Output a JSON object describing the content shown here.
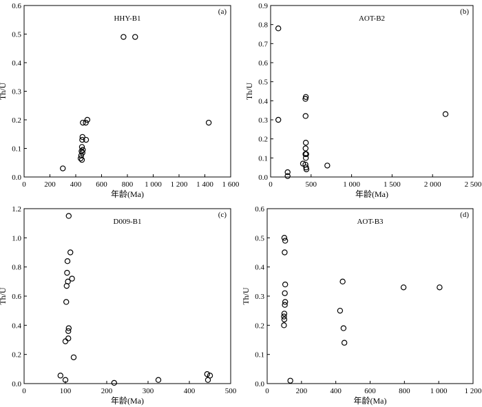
{
  "chart_data": [
    {
      "type": "scatter",
      "panel_label": "(a)",
      "sample": "HHY-B1",
      "xlabel": "年龄(Ma)",
      "ylabel": "Th/U",
      "xlim": [
        0,
        1600
      ],
      "ylim": [
        0,
        0.6
      ],
      "xticks": [
        0,
        200,
        400,
        600,
        800,
        1000,
        1200,
        1400,
        1600
      ],
      "xtick_labels": [
        "0",
        "200",
        "400",
        "600",
        "800",
        "1 000",
        "1 200",
        "1 400",
        "1 600"
      ],
      "yticks": [
        0,
        0.1,
        0.2,
        0.3,
        0.4,
        0.5,
        0.6
      ],
      "ytick_labels": [
        "0.0",
        "0.1",
        "0.2",
        "0.3",
        "0.4",
        "0.5",
        "0.6"
      ],
      "grid": false,
      "points": [
        {
          "x": 300,
          "y": 0.03
        },
        {
          "x": 438,
          "y": 0.065
        },
        {
          "x": 442,
          "y": 0.075
        },
        {
          "x": 448,
          "y": 0.06
        },
        {
          "x": 445,
          "y": 0.09
        },
        {
          "x": 452,
          "y": 0.085
        },
        {
          "x": 455,
          "y": 0.095
        },
        {
          "x": 448,
          "y": 0.105
        },
        {
          "x": 450,
          "y": 0.13
        },
        {
          "x": 452,
          "y": 0.14
        },
        {
          "x": 480,
          "y": 0.13
        },
        {
          "x": 455,
          "y": 0.19
        },
        {
          "x": 478,
          "y": 0.19
        },
        {
          "x": 490,
          "y": 0.2
        },
        {
          "x": 770,
          "y": 0.49
        },
        {
          "x": 860,
          "y": 0.49
        },
        {
          "x": 1430,
          "y": 0.19
        }
      ]
    },
    {
      "type": "scatter",
      "panel_label": "(b)",
      "sample": "AOT-B2",
      "xlabel": "年龄(Ma)",
      "ylabel": "Th/U",
      "xlim": [
        0,
        2500
      ],
      "ylim": [
        0,
        0.9
      ],
      "xticks": [
        0,
        500,
        1000,
        1500,
        2000,
        2500
      ],
      "xtick_labels": [
        "0",
        "500",
        "1 000",
        "1 500",
        "2 000",
        "2 500"
      ],
      "yticks": [
        0,
        0.1,
        0.2,
        0.3,
        0.4,
        0.5,
        0.6,
        0.7,
        0.8,
        0.9
      ],
      "ytick_labels": [
        "0.0",
        "0.1",
        "0.2",
        "0.3",
        "0.4",
        "0.5",
        "0.6",
        "0.7",
        "0.8",
        "0.9"
      ],
      "grid": false,
      "points": [
        {
          "x": 95,
          "y": 0.78
        },
        {
          "x": 95,
          "y": 0.3
        },
        {
          "x": 210,
          "y": 0.025
        },
        {
          "x": 210,
          "y": 0.005
        },
        {
          "x": 400,
          "y": 0.07
        },
        {
          "x": 435,
          "y": 0.42
        },
        {
          "x": 430,
          "y": 0.41
        },
        {
          "x": 432,
          "y": 0.32
        },
        {
          "x": 435,
          "y": 0.18
        },
        {
          "x": 432,
          "y": 0.15
        },
        {
          "x": 430,
          "y": 0.12
        },
        {
          "x": 440,
          "y": 0.12
        },
        {
          "x": 435,
          "y": 0.1
        },
        {
          "x": 430,
          "y": 0.065
        },
        {
          "x": 438,
          "y": 0.05
        },
        {
          "x": 442,
          "y": 0.04
        },
        {
          "x": 700,
          "y": 0.06
        },
        {
          "x": 2160,
          "y": 0.33
        }
      ]
    },
    {
      "type": "scatter",
      "panel_label": "(c)",
      "sample": "D009-B1",
      "xlabel": "年龄(Ma)",
      "ylabel": "Th/U",
      "xlim": [
        0,
        500
      ],
      "ylim": [
        0,
        1.2
      ],
      "xticks": [
        0,
        100,
        200,
        300,
        400,
        500
      ],
      "xtick_labels": [
        "0",
        "100",
        "200",
        "300",
        "400",
        "500"
      ],
      "yticks": [
        0,
        0.2,
        0.4,
        0.6,
        0.8,
        1.0,
        1.2
      ],
      "ytick_labels": [
        "0.0",
        "0.2",
        "0.4",
        "0.6",
        "0.8",
        "1.0",
        "1.2"
      ],
      "grid": false,
      "points": [
        {
          "x": 88,
          "y": 0.055
        },
        {
          "x": 100,
          "y": 0.025
        },
        {
          "x": 100,
          "y": 0.29
        },
        {
          "x": 107,
          "y": 0.31
        },
        {
          "x": 107,
          "y": 0.36
        },
        {
          "x": 108,
          "y": 0.38
        },
        {
          "x": 102,
          "y": 0.56
        },
        {
          "x": 103,
          "y": 0.67
        },
        {
          "x": 106,
          "y": 0.7
        },
        {
          "x": 104,
          "y": 0.76
        },
        {
          "x": 105,
          "y": 0.84
        },
        {
          "x": 112,
          "y": 0.9
        },
        {
          "x": 116,
          "y": 0.72
        },
        {
          "x": 108,
          "y": 1.15
        },
        {
          "x": 120,
          "y": 0.18
        },
        {
          "x": 218,
          "y": 0.005
        },
        {
          "x": 325,
          "y": 0.025
        },
        {
          "x": 443,
          "y": 0.065
        },
        {
          "x": 450,
          "y": 0.055
        },
        {
          "x": 445,
          "y": 0.025
        }
      ]
    },
    {
      "type": "scatter",
      "panel_label": "(d)",
      "sample": "AOT-B3",
      "xlabel": "年龄(Ma)",
      "ylabel": "Th/U",
      "xlim": [
        0,
        1200
      ],
      "ylim": [
        0,
        0.6
      ],
      "xticks": [
        0,
        200,
        400,
        600,
        800,
        1000,
        1200
      ],
      "xtick_labels": [
        "0",
        "200",
        "400",
        "600",
        "800",
        "1 000",
        "1 200"
      ],
      "yticks": [
        0,
        0.1,
        0.2,
        0.3,
        0.4,
        0.5,
        0.6
      ],
      "ytick_labels": [
        "0.0",
        "0.1",
        "0.2",
        "0.3",
        "0.4",
        "0.5",
        "0.6"
      ],
      "grid": false,
      "points": [
        {
          "x": 100,
          "y": 0.5
        },
        {
          "x": 105,
          "y": 0.49
        },
        {
          "x": 102,
          "y": 0.45
        },
        {
          "x": 105,
          "y": 0.34
        },
        {
          "x": 103,
          "y": 0.31
        },
        {
          "x": 105,
          "y": 0.28
        },
        {
          "x": 103,
          "y": 0.27
        },
        {
          "x": 100,
          "y": 0.24
        },
        {
          "x": 98,
          "y": 0.23
        },
        {
          "x": 100,
          "y": 0.22
        },
        {
          "x": 98,
          "y": 0.2
        },
        {
          "x": 135,
          "y": 0.01
        },
        {
          "x": 425,
          "y": 0.25
        },
        {
          "x": 440,
          "y": 0.35
        },
        {
          "x": 445,
          "y": 0.19
        },
        {
          "x": 450,
          "y": 0.14
        },
        {
          "x": 795,
          "y": 0.33
        },
        {
          "x": 1005,
          "y": 0.33
        }
      ]
    }
  ]
}
